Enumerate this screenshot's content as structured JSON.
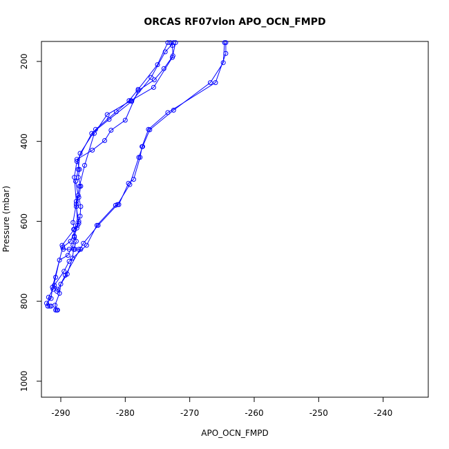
{
  "chart_data": {
    "type": "line",
    "title": "ORCAS RF07vlon APO_OCN_FMPD",
    "xlabel": "APO_OCN_FMPD",
    "ylabel": "Pressure (mbar)",
    "xlim": [
      -293,
      -233
    ],
    "ylim": [
      1040,
      150
    ],
    "y_reversed": true,
    "xticks": [
      -290,
      -280,
      -270,
      -260,
      -250,
      -240
    ],
    "yticks": [
      200,
      400,
      600,
      800,
      1000
    ],
    "grid": false,
    "line_color": "#0000ff",
    "marker": "open-circle",
    "series": [
      {
        "points": [
          [
            -290.6,
            822
          ],
          [
            -290.8,
            822
          ],
          [
            -290.5,
            822
          ],
          [
            -290.9,
            810
          ],
          [
            -290.2,
            780
          ],
          [
            -290.0,
            757
          ],
          [
            -289.0,
            732
          ],
          [
            -288.2,
            692
          ],
          [
            -288.0,
            670
          ],
          [
            -287.6,
            650
          ],
          [
            -287.9,
            637
          ],
          [
            -287.5,
            617
          ],
          [
            -287.2,
            600
          ],
          [
            -287.0,
            587
          ],
          [
            -286.9,
            563
          ],
          [
            -287.2,
            540
          ],
          [
            -286.9,
            512
          ],
          [
            -287.3,
            490
          ],
          [
            -287.1,
            470
          ],
          [
            -287.5,
            445
          ],
          [
            -285.1,
            422
          ],
          [
            -283.2,
            398
          ],
          [
            -282.2,
            372
          ],
          [
            -280.0,
            347
          ],
          [
            -278.0,
            273
          ],
          [
            -275.5,
            246
          ],
          [
            -274.0,
            218
          ],
          [
            -272.6,
            186
          ],
          [
            -272.7,
            160
          ],
          [
            -273.0,
            153
          ]
        ]
      },
      {
        "points": [
          [
            -273.4,
            153
          ],
          [
            -275.0,
            208
          ],
          [
            -278.0,
            270
          ],
          [
            -279.4,
            298
          ],
          [
            -281.4,
            326
          ],
          [
            -284.6,
            370
          ],
          [
            -287.0,
            430
          ],
          [
            -287.3,
            470
          ],
          [
            -287.7,
            500
          ],
          [
            -287.3,
            535
          ],
          [
            -287.6,
            563
          ],
          [
            -287.2,
            605
          ],
          [
            -288.0,
            620
          ],
          [
            -287.9,
            640
          ],
          [
            -288.1,
            660
          ],
          [
            -288.9,
            685
          ],
          [
            -290.2,
            697
          ],
          [
            -290.8,
            740
          ],
          [
            -291.2,
            770
          ],
          [
            -291.9,
            790
          ],
          [
            -292.0,
            812
          ],
          [
            -291.7,
            812
          ],
          [
            -291.5,
            812
          ]
        ]
      },
      {
        "points": [
          [
            -272.5,
            153
          ],
          [
            -273.8,
            176
          ],
          [
            -276.0,
            240
          ],
          [
            -279.0,
            300
          ],
          [
            -282.5,
            345
          ],
          [
            -285.2,
            380
          ],
          [
            -287.5,
            450
          ],
          [
            -287.9,
            490
          ],
          [
            -287.6,
            550
          ],
          [
            -287.4,
            610
          ],
          [
            -288.5,
            650
          ],
          [
            -289.7,
            665
          ],
          [
            -291.3,
            765
          ],
          [
            -291.5,
            793
          ],
          [
            -292.2,
            805
          ],
          [
            -292.0,
            812
          ]
        ]
      },
      {
        "points": [
          [
            -264.4,
            153
          ],
          [
            -264.4,
            180
          ],
          [
            -266.0,
            253
          ],
          [
            -273.4,
            328
          ],
          [
            -276.4,
            370
          ],
          [
            -277.4,
            413
          ],
          [
            -277.7,
            440
          ],
          [
            -278.7,
            495
          ],
          [
            -279.5,
            505
          ],
          [
            -281.0,
            558
          ],
          [
            -281.5,
            560
          ],
          [
            -284.4,
            610
          ],
          [
            -286.0,
            660
          ],
          [
            -288.7,
            700
          ],
          [
            -289.5,
            725
          ],
          [
            -291.0,
            760
          ],
          [
            -290.5,
            770
          ]
        ]
      },
      {
        "points": [
          [
            -264.6,
            153
          ],
          [
            -264.8,
            203
          ],
          [
            -266.8,
            253
          ],
          [
            -272.5,
            322
          ],
          [
            -276.2,
            371
          ],
          [
            -277.3,
            413
          ],
          [
            -277.9,
            440
          ],
          [
            -279.3,
            508
          ],
          [
            -281.2,
            558
          ],
          [
            -284.2,
            610
          ],
          [
            -286.5,
            655
          ],
          [
            -289.3,
            735
          ],
          [
            -290.6,
            775
          ]
        ]
      },
      {
        "points": [
          [
            -272.2,
            153
          ],
          [
            -272.7,
            190
          ],
          [
            -275.6,
            265
          ],
          [
            -279.1,
            298
          ],
          [
            -282.8,
            333
          ],
          [
            -284.8,
            380
          ],
          [
            -286.3,
            460
          ],
          [
            -287.1,
            512
          ],
          [
            -287.6,
            557
          ],
          [
            -288.1,
            603
          ],
          [
            -287.9,
            620
          ],
          [
            -289.8,
            660
          ],
          [
            -289.6,
            670
          ],
          [
            -288.7,
            670
          ],
          [
            -287.8,
            670
          ],
          [
            -287.2,
            670
          ],
          [
            -286.9,
            670
          ]
        ]
      }
    ]
  }
}
